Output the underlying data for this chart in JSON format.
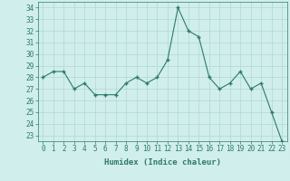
{
  "x": [
    0,
    1,
    2,
    3,
    4,
    5,
    6,
    7,
    8,
    9,
    10,
    11,
    12,
    13,
    14,
    15,
    16,
    17,
    18,
    19,
    20,
    21,
    22,
    23
  ],
  "y": [
    28.0,
    28.5,
    28.5,
    27.0,
    27.5,
    26.5,
    26.5,
    26.5,
    27.5,
    28.0,
    27.5,
    28.0,
    29.5,
    34.0,
    32.0,
    31.5,
    28.0,
    27.0,
    27.5,
    28.5,
    27.0,
    27.5,
    25.0,
    22.5
  ],
  "line_color": "#2d7a6a",
  "marker_color": "#2d7a6a",
  "bg_color": "#d0eeec",
  "grid_color": "#b0d8d4",
  "xlabel": "Humidex (Indice chaleur)",
  "xlim": [
    -0.5,
    23.5
  ],
  "ylim": [
    22.5,
    34.5
  ],
  "yticks": [
    23,
    24,
    25,
    26,
    27,
    28,
    29,
    30,
    31,
    32,
    33,
    34
  ],
  "xticks": [
    0,
    1,
    2,
    3,
    4,
    5,
    6,
    7,
    8,
    9,
    10,
    11,
    12,
    13,
    14,
    15,
    16,
    17,
    18,
    19,
    20,
    21,
    22,
    23
  ],
  "tick_fontsize": 5.5,
  "xlabel_fontsize": 6.5
}
